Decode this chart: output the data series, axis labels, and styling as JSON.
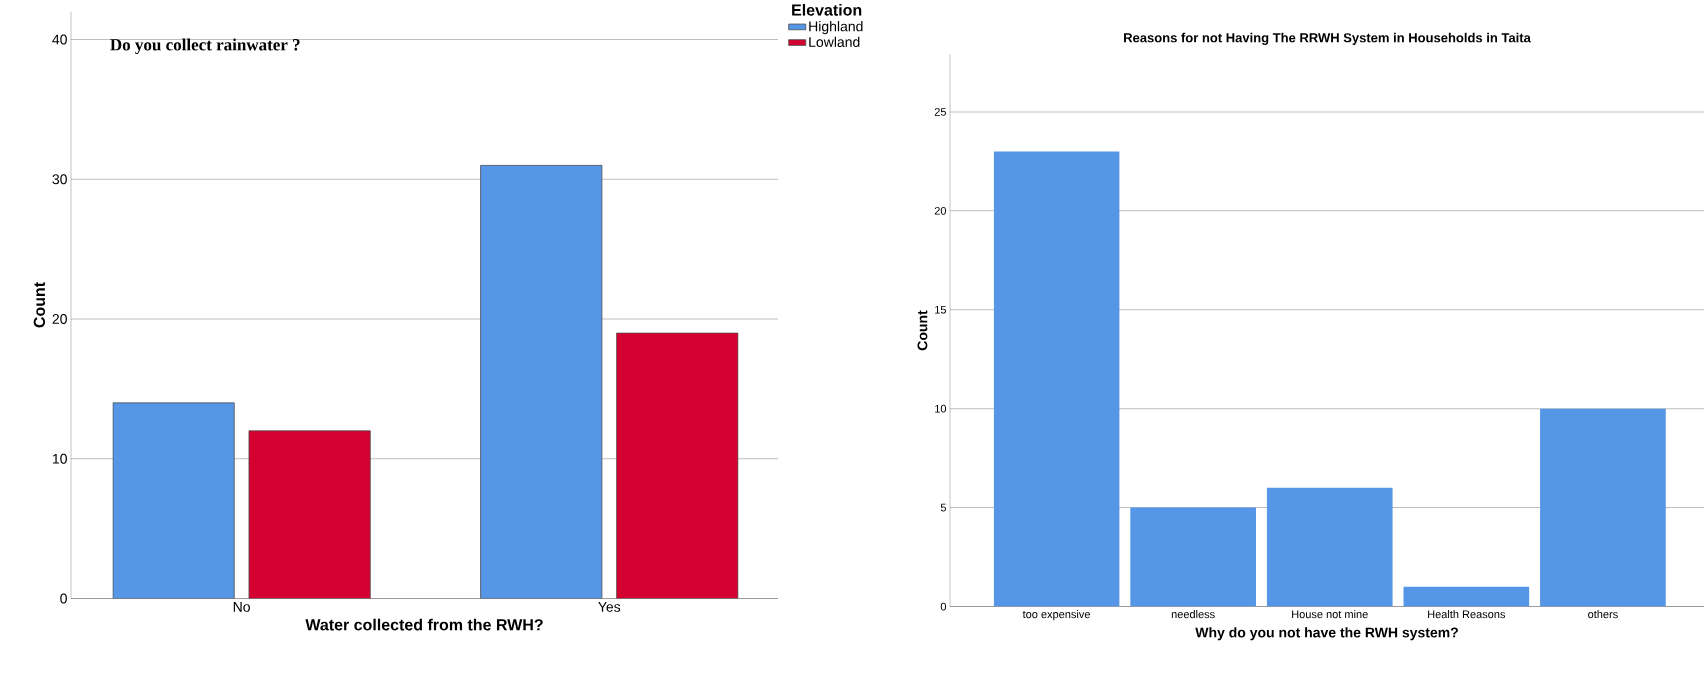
{
  "chart_data": [
    {
      "type": "bar",
      "annotations": [
        "Do you collect rainwater ?"
      ],
      "xlabel": "Water collected from the RWH?",
      "ylabel": "Count",
      "legend_title": "Elevation",
      "categories": [
        "No",
        "Yes"
      ],
      "series": [
        {
          "name": "Highland",
          "color": "#5596e6",
          "values": [
            14,
            31
          ]
        },
        {
          "name": "Lowland",
          "color": "#d50032",
          "values": [
            12,
            19
          ]
        }
      ],
      "ylim": [
        0,
        42
      ],
      "yticks": [
        0,
        10,
        20,
        30,
        40
      ],
      "grid": "y",
      "legend": "top right"
    },
    {
      "type": "bar",
      "title": "Reasons for not Having The RRWH System in Households  in Taita",
      "xlabel": "Why do you not have the RWH system?",
      "ylabel": "Count",
      "categories": [
        "too expensive",
        "needless",
        "House not mine",
        "Health Reasons",
        "others"
      ],
      "series": [
        {
          "color": "#5596e6",
          "values": [
            23,
            5,
            6,
            1,
            10
          ]
        }
      ],
      "ylim": [
        0,
        27.9
      ],
      "yticks": [
        0,
        5,
        10,
        15,
        20,
        25
      ],
      "grid": "y"
    }
  ]
}
